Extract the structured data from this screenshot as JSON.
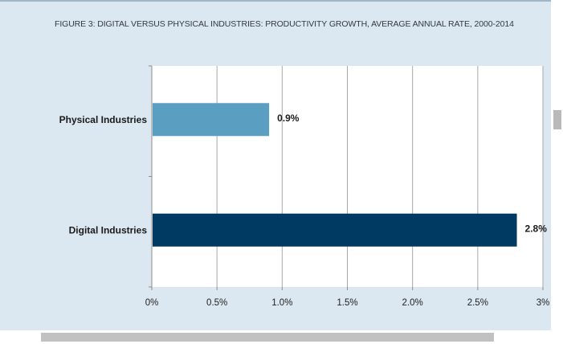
{
  "figure": {
    "title": "FIGURE 3: DIGITAL VERSUS PHYSICAL INDUSTRIES: PRODUCTIVITY GROWTH, AVERAGE ANNUAL RATE, 2000-2014"
  },
  "chart_data": {
    "type": "bar",
    "orientation": "horizontal",
    "title": "FIGURE 3: DIGITAL VERSUS PHYSICAL INDUSTRIES: PRODUCTIVITY GROWTH, AVERAGE ANNUAL RATE, 2000-2014",
    "categories": [
      "Physical Industries",
      "Digital Industries"
    ],
    "values": [
      0.9,
      2.8
    ],
    "value_labels": [
      "0.9%",
      "2.8%"
    ],
    "bar_colors": [
      "#5a9fc2",
      "#003a63"
    ],
    "xlim": [
      0,
      3
    ],
    "xticks": [
      0,
      0.5,
      1.0,
      1.5,
      2.0,
      2.5,
      3
    ],
    "xtick_labels": [
      "0%",
      "0.5%",
      "1.0%",
      "1.5%",
      "2.0%",
      "2.5%",
      "3%"
    ],
    "xlabel": "",
    "ylabel": "",
    "grid": "vertical",
    "legend": "none"
  }
}
